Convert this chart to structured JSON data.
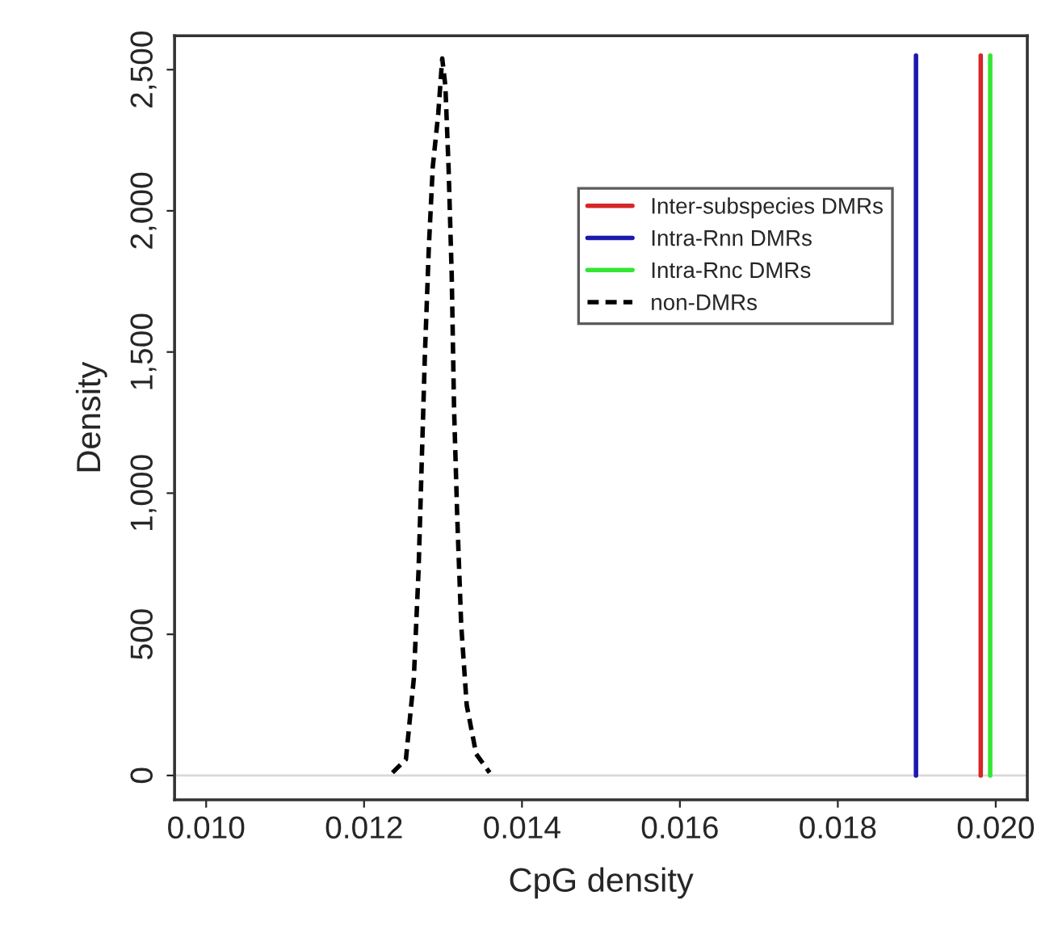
{
  "chart_data": {
    "type": "line",
    "xlabel": "CpG density",
    "ylabel": "Density",
    "xlim": [
      0.0096,
      0.0204
    ],
    "ylim": [
      -86,
      2620
    ],
    "xticks": [
      {
        "value": 0.01,
        "label": "0.010"
      },
      {
        "value": 0.012,
        "label": "0.012"
      },
      {
        "value": 0.014,
        "label": "0.014"
      },
      {
        "value": 0.016,
        "label": "0.016"
      },
      {
        "value": 0.018,
        "label": "0.018"
      },
      {
        "value": 0.02,
        "label": "0.020"
      }
    ],
    "yticks": [
      0,
      500,
      {
        "value": 1000,
        "label": "1,000"
      },
      {
        "value": 1500,
        "label": "1,500"
      },
      {
        "value": 2000,
        "label": "2,000"
      },
      {
        "value": 2500,
        "label": "2,500"
      }
    ],
    "grid": false,
    "legend": "top right",
    "ref_lines": [
      {
        "axis": "y",
        "value": 0,
        "color": "#d9d9d9"
      }
    ],
    "series": [
      {
        "name": "Inter-subspecies DMRs",
        "color": "#d62728",
        "line_style": "solid",
        "x": [
          0.01981,
          0.01981
        ],
        "values": [
          0,
          2550
        ]
      },
      {
        "name": "Intra-Rnn DMRs",
        "color": "#1a1aad",
        "line_style": "solid",
        "x": [
          0.01899,
          0.01899
        ],
        "values": [
          0,
          2550
        ]
      },
      {
        "name": "Intra-Rnc DMRs",
        "color": "#33e633",
        "line_style": "solid",
        "x": [
          0.01993,
          0.01993
        ],
        "values": [
          0,
          2550
        ]
      },
      {
        "name": "non-DMRs",
        "color": "#000000",
        "line_style": "dashed",
        "x": [
          0.01236,
          0.01253,
          0.01263,
          0.01269,
          0.01273,
          0.01277,
          0.01282,
          0.01287,
          0.01294,
          0.01299,
          0.01303,
          0.01307,
          0.01311,
          0.01314,
          0.01318,
          0.01323,
          0.0133,
          0.01342,
          0.01359
        ],
        "values": [
          10,
          57,
          343,
          725,
          1106,
          1487,
          1869,
          2155,
          2346,
          2540,
          2441,
          2155,
          1773,
          1297,
          915,
          534,
          249,
          76,
          10
        ]
      }
    ]
  }
}
